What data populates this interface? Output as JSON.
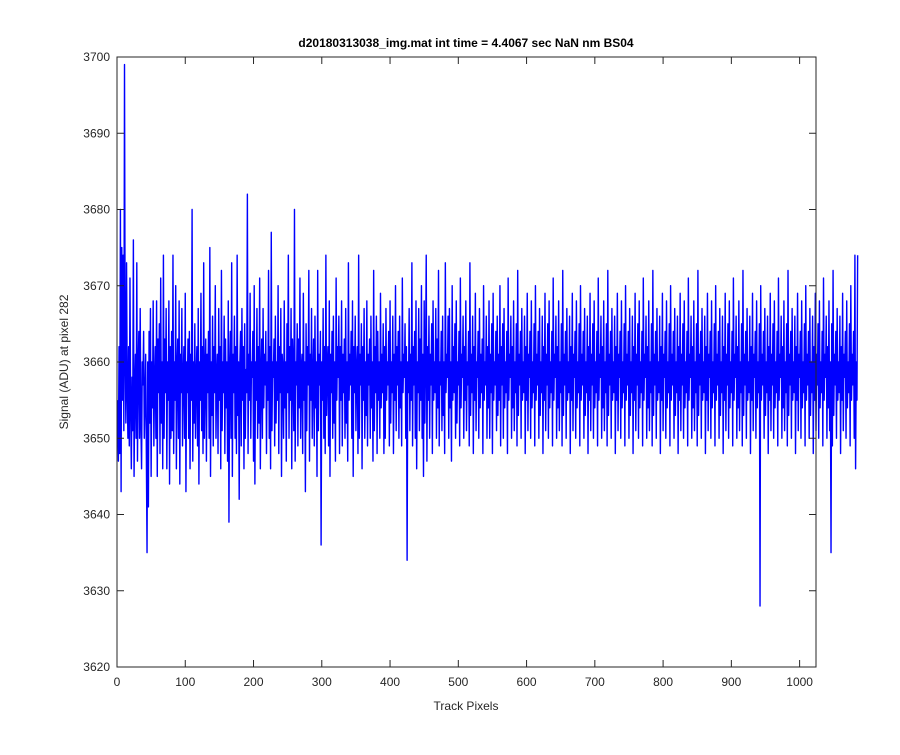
{
  "chart_data": {
    "type": "line",
    "title": "d20180313038_img.mat int time = 4.4067 sec  NaN nm BS04",
    "xlabel": "Track Pixels",
    "ylabel": "Signal (ADU) at pixel 282",
    "xlim": [
      0,
      1024
    ],
    "ylim": [
      3620,
      3700
    ],
    "xticks": [
      0,
      100,
      200,
      300,
      400,
      500,
      600,
      700,
      800,
      900,
      1000
    ],
    "yticks": [
      3620,
      3630,
      3640,
      3650,
      3660,
      3670,
      3680,
      3690,
      3700
    ],
    "grid": false,
    "box": true,
    "series": [
      {
        "color": "#0000ff",
        "x_start": 1,
        "x_step": 1,
        "values": [
          3655,
          3647,
          3662,
          3648,
          3680,
          3643,
          3675,
          3655,
          3674,
          3651,
          3699,
          3660,
          3652,
          3673,
          3656,
          3650,
          3662,
          3649,
          3671,
          3654,
          3646,
          3658,
          3651,
          3676,
          3645,
          3656,
          3661,
          3650,
          3673,
          3647,
          3659,
          3664,
          3650,
          3667,
          3652,
          3646,
          3660,
          3657,
          3664,
          3650,
          3655,
          3661,
          3648,
          3635,
          3660,
          3641,
          3664,
          3652,
          3667,
          3645,
          3660,
          3654,
          3668,
          3649,
          3657,
          3662,
          3650,
          3668,
          3645,
          3663,
          3656,
          3665,
          3648,
          3671,
          3652,
          3660,
          3646,
          3674,
          3650,
          3663,
          3656,
          3667,
          3646,
          3660,
          3655,
          3668,
          3644,
          3662,
          3650,
          3664,
          3651,
          3674,
          3648,
          3660,
          3655,
          3670,
          3646,
          3659,
          3663,
          3650,
          3668,
          3644,
          3661,
          3656,
          3667,
          3649,
          3658,
          3662,
          3650,
          3669,
          3643,
          3660,
          3656,
          3663,
          3650,
          3664,
          3646,
          3661,
          3655,
          3680,
          3647,
          3660,
          3652,
          3665,
          3650,
          3658,
          3662,
          3649,
          3667,
          3644,
          3660,
          3655,
          3669,
          3651,
          3662,
          3648,
          3673,
          3650,
          3658,
          3663,
          3647,
          3661,
          3656,
          3664,
          3650,
          3675,
          3645,
          3660,
          3653,
          3666,
          3649,
          3662,
          3656,
          3670,
          3650,
          3658,
          3661,
          3648,
          3667,
          3655,
          3662,
          3646,
          3672,
          3651,
          3660,
          3656,
          3666,
          3648,
          3663,
          3654,
          3660,
          3647,
          3668,
          3639,
          3659,
          3664,
          3650,
          3673,
          3645,
          3661,
          3656,
          3666,
          3650,
          3662,
          3648,
          3674,
          3653,
          3660,
          3642,
          3660,
          3664,
          3649,
          3667,
          3655,
          3662,
          3646,
          3665,
          3650,
          3659,
          3656,
          3682,
          3648,
          3661,
          3655,
          3669,
          3650,
          3660,
          3658,
          3664,
          3647,
          3670,
          3644,
          3660,
          3655,
          3667,
          3650,
          3662,
          3652,
          3671,
          3646,
          3658,
          3663,
          3650,
          3667,
          3654,
          3661,
          3657,
          3664,
          3648,
          3660,
          3655,
          3672,
          3650,
          3662,
          3646,
          3677,
          3651,
          3660,
          3658,
          3663,
          3649,
          3666,
          3652,
          3660,
          3655,
          3670,
          3648,
          3662,
          3656,
          3667,
          3645,
          3661,
          3659,
          3650,
          3668,
          3654,
          3660,
          3647,
          3665,
          3656,
          3674,
          3650,
          3662,
          3655,
          3667,
          3646,
          3663,
          3659,
          3651,
          3680,
          3647,
          3660,
          3657,
          3665,
          3649,
          3663,
          3654,
          3671,
          3650,
          3659,
          3661,
          3648,
          3669,
          3655,
          3660,
          3643,
          3665,
          3651,
          3662,
          3657,
          3672,
          3647,
          3661,
          3655,
          3667,
          3650,
          3658,
          3663,
          3649,
          3666,
          3654,
          3660,
          3645,
          3672,
          3651,
          3661,
          3657,
          3664,
          3636,
          3660,
          3655,
          3667,
          3650,
          3662,
          3648,
          3674,
          3653,
          3659,
          3662,
          3649,
          3668,
          3645,
          3661,
          3656,
          3664,
          3650,
          3666,
          3652,
          3660,
          3647,
          3671,
          3655,
          3662,
          3658,
          3666,
          3648,
          3662,
          3655,
          3668,
          3649,
          3661,
          3656,
          3663,
          3650,
          3667,
          3652,
          3660,
          3647,
          3673,
          3655,
          3661,
          3657,
          3664,
          3650,
          3668,
          3645,
          3662,
          3656,
          3666,
          3651,
          3659,
          3662,
          3648,
          3674,
          3650,
          3661,
          3657,
          3665,
          3646,
          3662,
          3655,
          3667,
          3650,
          3660,
          3653,
          3668,
          3649,
          3661,
          3657,
          3663,
          3650,
          3666,
          3654,
          3660,
          3647,
          3672,
          3651,
          3662,
          3656,
          3666,
          3648,
          3664,
          3655,
          3660,
          3650,
          3669,
          3654,
          3661,
          3656,
          3665,
          3648,
          3662,
          3650,
          3667,
          3655,
          3660,
          3657,
          3664,
          3649,
          3668,
          3652,
          3660,
          3656,
          3666,
          3648,
          3661,
          3655,
          3670,
          3651,
          3662,
          3657,
          3664,
          3650,
          3666,
          3654,
          3660,
          3649,
          3671,
          3656,
          3661,
          3658,
          3665,
          3650,
          3662,
          3634,
          3660,
          3656,
          3667,
          3651,
          3661,
          3655,
          3673,
          3649,
          3662,
          3657,
          3664,
          3650,
          3668,
          3646,
          3660,
          3656,
          3667,
          3651,
          3663,
          3655,
          3670,
          3650,
          3661,
          3645,
          3668,
          3652,
          3660,
          3674,
          3647,
          3662,
          3655,
          3666,
          3650,
          3661,
          3657,
          3665,
          3648,
          3668,
          3655,
          3660,
          3656,
          3667,
          3650,
          3663,
          3654,
          3672,
          3649,
          3660,
          3657,
          3664,
          3651,
          3666,
          3653,
          3660,
          3648,
          3673,
          3656,
          3661,
          3658,
          3666,
          3650,
          3667,
          3654,
          3660,
          3647,
          3670,
          3655,
          3662,
          3656,
          3665,
          3650,
          3668,
          3652,
          3660,
          3657,
          3664,
          3649,
          3671,
          3654,
          3661,
          3658,
          3666,
          3650,
          3662,
          3655,
          3668,
          3651,
          3660,
          3657,
          3664,
          3649,
          3673,
          3653,
          3661,
          3656,
          3666,
          3648,
          3662,
          3655,
          3669,
          3651,
          3660,
          3658,
          3664,
          3650,
          3667,
          3654,
          3661,
          3656,
          3663,
          3648,
          3670,
          3655,
          3660,
          3657,
          3666,
          3650,
          3662,
          3654,
          3668,
          3650,
          3661,
          3656,
          3665,
          3648,
          3669,
          3655,
          3660,
          3657,
          3664,
          3651,
          3666,
          3653,
          3661,
          3655,
          3670,
          3649,
          3662,
          3657,
          3665,
          3650,
          3667,
          3654,
          3660,
          3656,
          3664,
          3648,
          3671,
          3655,
          3661,
          3658,
          3666,
          3650,
          3662,
          3654,
          3668,
          3651,
          3660,
          3656,
          3665,
          3649,
          3672,
          3653,
          3661,
          3657,
          3664,
          3650,
          3667,
          3655,
          3660,
          3656,
          3666,
          3648,
          3662,
          3655,
          3669,
          3651,
          3661,
          3658,
          3664,
          3650,
          3668,
          3654,
          3660,
          3656,
          3665,
          3649,
          3670,
          3655,
          3661,
          3657,
          3664,
          3650,
          3667,
          3653,
          3660,
          3656,
          3666,
          3648,
          3662,
          3655,
          3669,
          3651,
          3661,
          3657,
          3665,
          3650,
          3668,
          3654,
          3660,
          3656,
          3664,
          3649,
          3671,
          3655,
          3661,
          3658,
          3666,
          3650,
          3662,
          3654,
          3668,
          3651,
          3660,
          3656,
          3665,
          3649,
          3672,
          3653,
          3661,
          3657,
          3664,
          3650,
          3667,
          3655,
          3660,
          3656,
          3666,
          3648,
          3662,
          3655,
          3669,
          3651,
          3661,
          3658,
          3664,
          3650,
          3668,
          3654,
          3660,
          3656,
          3665,
          3649,
          3670,
          3655,
          3661,
          3657,
          3664,
          3650,
          3667,
          3653,
          3660,
          3656,
          3666,
          3648,
          3662,
          3655,
          3669,
          3651,
          3661,
          3657,
          3665,
          3650,
          3668,
          3654,
          3660,
          3656,
          3664,
          3649,
          3671,
          3655,
          3661,
          3658,
          3666,
          3650,
          3662,
          3654,
          3668,
          3651,
          3660,
          3656,
          3665,
          3649,
          3672,
          3653,
          3661,
          3657,
          3664,
          3650,
          3667,
          3655,
          3660,
          3656,
          3666,
          3648,
          3662,
          3655,
          3669,
          3651,
          3661,
          3658,
          3664,
          3650,
          3668,
          3654,
          3660,
          3656,
          3665,
          3649,
          3670,
          3655,
          3661,
          3657,
          3664,
          3650,
          3667,
          3653,
          3660,
          3656,
          3666,
          3648,
          3662,
          3655,
          3669,
          3651,
          3661,
          3657,
          3665,
          3650,
          3668,
          3654,
          3660,
          3656,
          3664,
          3649,
          3671,
          3655,
          3661,
          3658,
          3666,
          3650,
          3662,
          3654,
          3668,
          3651,
          3660,
          3656,
          3665,
          3649,
          3672,
          3653,
          3661,
          3657,
          3664,
          3650,
          3667,
          3655,
          3660,
          3656,
          3666,
          3648,
          3662,
          3655,
          3669,
          3651,
          3661,
          3658,
          3664,
          3650,
          3668,
          3654,
          3660,
          3656,
          3665,
          3649,
          3670,
          3655,
          3661,
          3657,
          3664,
          3650,
          3667,
          3653,
          3660,
          3656,
          3666,
          3648,
          3662,
          3655,
          3669,
          3651,
          3661,
          3657,
          3665,
          3650,
          3668,
          3654,
          3660,
          3656,
          3664,
          3649,
          3671,
          3655,
          3661,
          3658,
          3666,
          3650,
          3662,
          3654,
          3668,
          3651,
          3660,
          3656,
          3665,
          3649,
          3672,
          3653,
          3661,
          3657,
          3664,
          3650,
          3667,
          3655,
          3660,
          3656,
          3666,
          3648,
          3662,
          3655,
          3669,
          3651,
          3661,
          3658,
          3664,
          3650,
          3668,
          3654,
          3660,
          3656,
          3665,
          3649,
          3670,
          3655,
          3661,
          3657,
          3664,
          3650,
          3667,
          3653,
          3660,
          3656,
          3666,
          3648,
          3662,
          3655,
          3669,
          3651,
          3661,
          3657,
          3665,
          3650,
          3668,
          3654,
          3660,
          3656,
          3664,
          3649,
          3671,
          3655,
          3661,
          3658,
          3666,
          3650,
          3662,
          3654,
          3668,
          3651,
          3660,
          3656,
          3665,
          3649,
          3672,
          3653,
          3661,
          3657,
          3664,
          3650,
          3667,
          3655,
          3660,
          3656,
          3666,
          3648,
          3662,
          3655,
          3669,
          3651,
          3661,
          3658,
          3664,
          3650,
          3668,
          3654,
          3660,
          3656,
          3665,
          3628,
          3670,
          3655,
          3661,
          3657,
          3664,
          3650,
          3667,
          3653,
          3660,
          3656,
          3666,
          3648,
          3662,
          3655,
          3669,
          3651,
          3661,
          3657,
          3665,
          3650,
          3668,
          3654,
          3660,
          3656,
          3664,
          3649,
          3671,
          3655,
          3661,
          3658,
          3666,
          3650,
          3662,
          3654,
          3668,
          3651,
          3660,
          3656,
          3665,
          3649,
          3672,
          3653,
          3661,
          3657,
          3664,
          3650,
          3667,
          3655,
          3660,
          3656,
          3666,
          3648,
          3662,
          3655,
          3669,
          3651,
          3661,
          3658,
          3664,
          3650,
          3668,
          3654,
          3660,
          3656,
          3665,
          3649,
          3670,
          3655,
          3661,
          3657,
          3664,
          3650,
          3667,
          3653,
          3660,
          3656,
          3666,
          3648,
          3662,
          3655,
          3669,
          3651,
          3661,
          3657,
          3665,
          3650,
          3668,
          3654,
          3660,
          3656,
          3664,
          3649,
          3671,
          3655,
          3661,
          3658,
          3666,
          3650,
          3662,
          3654,
          3668,
          3651,
          3660,
          3635,
          3665,
          3649,
          3672,
          3653,
          3661,
          3657,
          3664,
          3650,
          3667,
          3655,
          3660,
          3656,
          3666,
          3648,
          3662,
          3655,
          3669,
          3651,
          3661,
          3658,
          3664,
          3650,
          3668,
          3654,
          3660,
          3656,
          3665,
          3649,
          3670,
          3655,
          3661,
          3657,
          3664,
          3650,
          3674,
          3646,
          3660,
          3655,
          3674
        ]
      }
    ]
  }
}
